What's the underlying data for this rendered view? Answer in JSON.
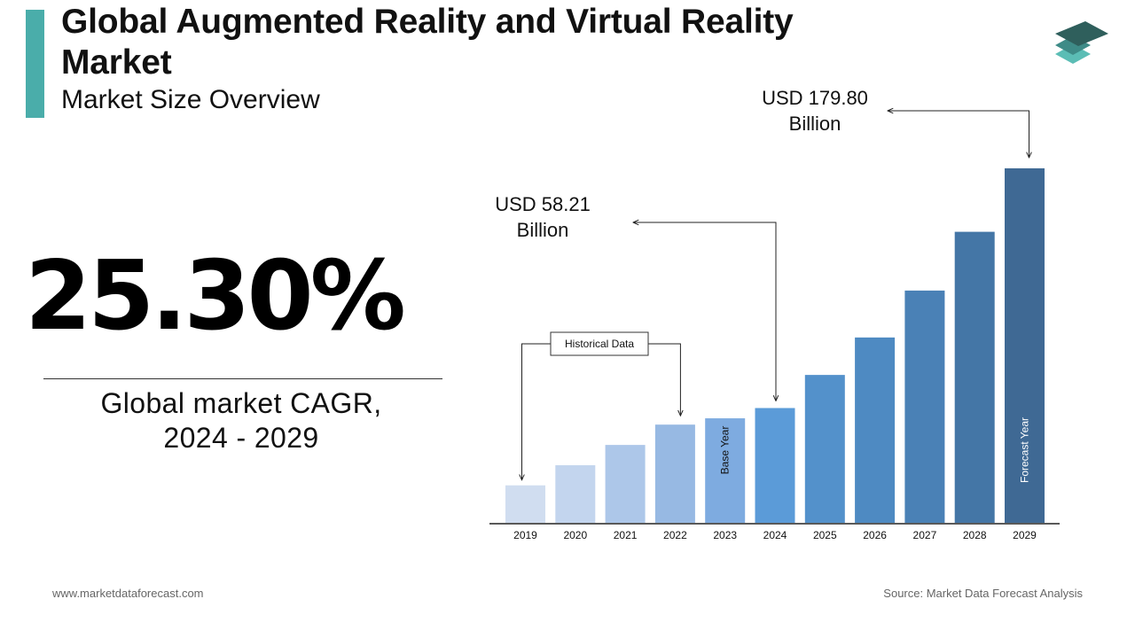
{
  "header": {
    "title": "Global Augmented Reality and Virtual Reality Market",
    "subtitle": "Market Size Overview",
    "accent_color": "#4AADAA"
  },
  "cagr": {
    "value": "25.30%",
    "label_line1": "Global market CAGR,",
    "label_line2": "2024 - 2029"
  },
  "chart_data": {
    "type": "bar",
    "categories": [
      "2019",
      "2020",
      "2021",
      "2022",
      "2023",
      "2024",
      "2025",
      "2026",
      "2027",
      "2028",
      "2029"
    ],
    "values": [
      19.0,
      29.2,
      39.5,
      49.8,
      53.0,
      58.21,
      75.0,
      94.0,
      117.8,
      147.6,
      179.8
    ],
    "colors": [
      "#D0DDF0",
      "#C3D5EE",
      "#ADC7E9",
      "#97B9E3",
      "#7EABE0",
      "#5B9BD8",
      "#5391CB",
      "#4E8AC2",
      "#4A81B6",
      "#4476A6",
      "#3F6994"
    ],
    "ylim": [
      0,
      200
    ],
    "annotations": {
      "value_2024": {
        "line1": "USD 58.21",
        "line2": "Billion",
        "category": "2024"
      },
      "value_2029": {
        "line1": "USD 179.80",
        "line2": "Billion",
        "category": "2029"
      },
      "historical": {
        "label": "Historical Data",
        "from": "2019",
        "to": "2022"
      },
      "base_year": {
        "label": "Base Year",
        "category": "2023"
      },
      "forecast_year": {
        "label": "Forecast Year",
        "category": "2029"
      }
    }
  },
  "footer": {
    "website": "www.marketdataforecast.com",
    "source": "Source: Market Data Forecast Analysis"
  }
}
